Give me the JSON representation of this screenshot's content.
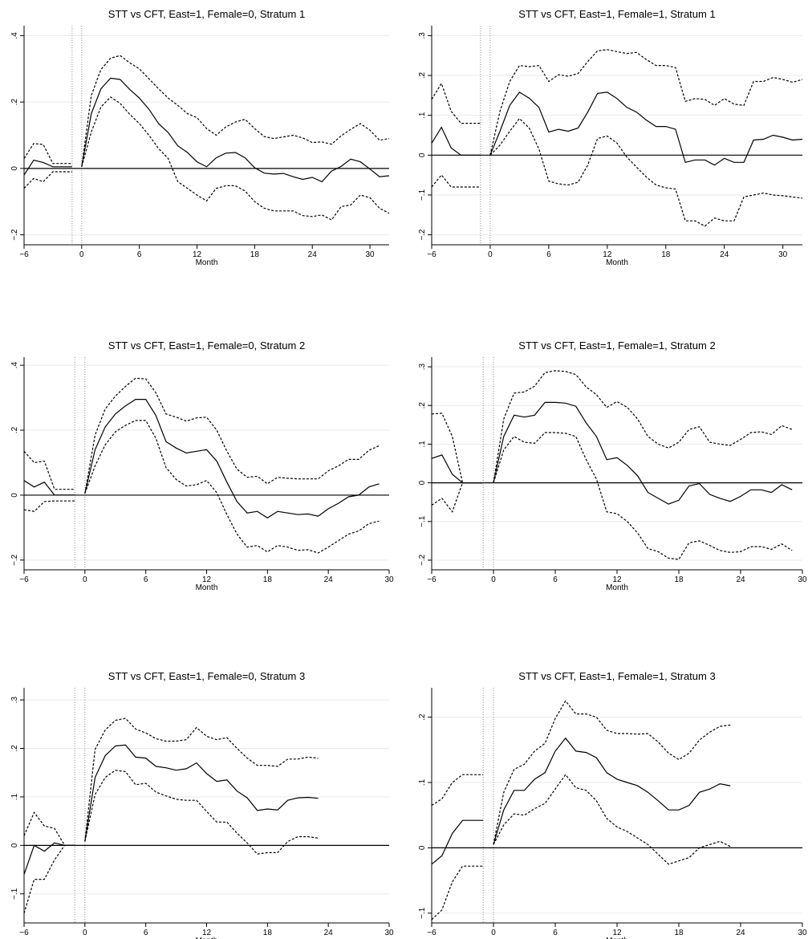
{
  "colors": {
    "line": "#000000",
    "grid": "#eaeaea",
    "ref": "#888888"
  },
  "chart_data": [
    {
      "type": "line",
      "title": "STT vs CFT, East=1, Female=0, Stratum 1",
      "xlabel": "Month",
      "ylabel": "",
      "xlim": [
        -6,
        32
      ],
      "ylim": [
        -0.23,
        0.43
      ],
      "xticks": [
        -6,
        0,
        6,
        12,
        18,
        24,
        30
      ],
      "xtick_labels": [
        "−6",
        "0",
        "6",
        "12",
        "18",
        "24",
        "30"
      ],
      "yticks": [
        -0.2,
        0,
        0.2,
        0.4
      ],
      "ytick_labels": [
        "−.2",
        "0",
        ".2",
        ".4"
      ],
      "grid": true,
      "vlines": [
        -1,
        0
      ],
      "hline": 0,
      "pre": {
        "x": [
          -6,
          -5,
          -4,
          -3,
          -2,
          -1
        ],
        "y": [
          -0.02,
          0.025,
          0.018,
          0.005,
          0.005,
          0.005
        ],
        "lo": [
          -0.06,
          -0.03,
          -0.04,
          -0.01,
          -0.01,
          -0.01
        ],
        "hi": [
          0.03,
          0.075,
          0.072,
          0.015,
          0.015,
          0.015
        ]
      },
      "post": {
        "x": [
          0,
          1,
          2,
          3,
          4,
          5,
          6,
          7,
          8,
          9,
          10,
          11,
          12,
          13,
          14,
          15,
          16,
          17,
          18,
          19,
          20,
          21,
          22,
          23,
          24,
          25,
          26,
          27,
          28,
          29,
          30,
          31,
          32
        ],
        "y": [
          0.005,
          0.165,
          0.24,
          0.272,
          0.268,
          0.238,
          0.212,
          0.178,
          0.135,
          0.108,
          0.068,
          0.048,
          0.02,
          0.005,
          0.032,
          0.046,
          0.048,
          0.032,
          0.002,
          -0.014,
          -0.017,
          -0.015,
          -0.025,
          -0.033,
          -0.027,
          -0.04,
          -0.008,
          0.006,
          0.028,
          0.02,
          -0.002,
          -0.025,
          -0.022
        ],
        "lo": [
          0.005,
          0.11,
          0.185,
          0.215,
          0.196,
          0.163,
          0.135,
          0.1,
          0.06,
          0.03,
          -0.04,
          -0.06,
          -0.08,
          -0.098,
          -0.06,
          -0.052,
          -0.052,
          -0.068,
          -0.1,
          -0.12,
          -0.128,
          -0.128,
          -0.128,
          -0.142,
          -0.145,
          -0.14,
          -0.155,
          -0.115,
          -0.11,
          -0.08,
          -0.088,
          -0.12,
          -0.135
        ],
        "hi": [
          0.005,
          0.22,
          0.298,
          0.332,
          0.34,
          0.318,
          0.3,
          0.27,
          0.24,
          0.212,
          0.19,
          0.165,
          0.153,
          0.12,
          0.1,
          0.125,
          0.14,
          0.148,
          0.12,
          0.096,
          0.09,
          0.095,
          0.1,
          0.092,
          0.078,
          0.08,
          0.073,
          0.098,
          0.118,
          0.135,
          0.115,
          0.085,
          0.09
        ]
      }
    },
    {
      "type": "line",
      "title": "STT vs CFT, East=1, Female=1, Stratum 1",
      "xlabel": "Month",
      "ylabel": "",
      "xlim": [
        -6,
        32
      ],
      "ylim": [
        -0.225,
        0.325
      ],
      "xticks": [
        -6,
        0,
        6,
        12,
        18,
        24,
        30
      ],
      "xtick_labels": [
        "−6",
        "0",
        "6",
        "12",
        "18",
        "24",
        "30"
      ],
      "yticks": [
        -0.2,
        -0.1,
        0,
        0.1,
        0.2,
        0.3
      ],
      "ytick_labels": [
        "−.2",
        "−.1",
        "0",
        ".1",
        ".2",
        ".3"
      ],
      "grid": true,
      "vlines": [
        -1,
        0
      ],
      "hline": 0,
      "pre": {
        "x": [
          -6,
          -5,
          -4,
          -3,
          -2,
          -1
        ],
        "y": [
          0.03,
          0.07,
          0.018,
          0.0,
          0.0,
          0.0
        ],
        "lo": [
          -0.08,
          -0.05,
          -0.08,
          -0.08,
          -0.08,
          -0.08
        ],
        "hi": [
          0.14,
          0.18,
          0.11,
          0.08,
          0.08,
          0.08
        ]
      },
      "post": {
        "x": [
          0,
          1,
          2,
          3,
          4,
          5,
          6,
          7,
          8,
          9,
          10,
          11,
          12,
          13,
          14,
          15,
          16,
          17,
          18,
          19,
          20,
          21,
          22,
          23,
          24,
          25,
          26,
          27,
          28,
          29,
          30,
          31,
          32
        ],
        "y": [
          0.0,
          0.06,
          0.125,
          0.158,
          0.143,
          0.12,
          0.058,
          0.065,
          0.06,
          0.068,
          0.108,
          0.155,
          0.158,
          0.142,
          0.12,
          0.108,
          0.088,
          0.072,
          0.072,
          0.065,
          -0.018,
          -0.012,
          -0.012,
          -0.025,
          -0.008,
          -0.018,
          -0.018,
          0.038,
          0.04,
          0.05,
          0.045,
          0.038,
          0.04
        ],
        "lo": [
          0.0,
          0.025,
          0.06,
          0.092,
          0.068,
          0.015,
          -0.065,
          -0.072,
          -0.075,
          -0.068,
          -0.025,
          0.042,
          0.048,
          0.03,
          -0.005,
          -0.03,
          -0.055,
          -0.075,
          -0.082,
          -0.085,
          -0.165,
          -0.165,
          -0.178,
          -0.158,
          -0.165,
          -0.165,
          -0.105,
          -0.1,
          -0.095,
          -0.1,
          -0.102,
          -0.105,
          -0.108
        ],
        "hi": [
          0.0,
          0.11,
          0.185,
          0.225,
          0.222,
          0.225,
          0.185,
          0.202,
          0.198,
          0.205,
          0.235,
          0.262,
          0.265,
          0.26,
          0.255,
          0.258,
          0.24,
          0.225,
          0.225,
          0.22,
          0.135,
          0.142,
          0.14,
          0.125,
          0.142,
          0.128,
          0.125,
          0.185,
          0.185,
          0.195,
          0.19,
          0.183,
          0.19
        ]
      }
    },
    {
      "type": "line",
      "title": "STT vs CFT, East=1, Female=0, Stratum 2",
      "xlabel": "Month",
      "ylabel": "",
      "xlim": [
        -6,
        30
      ],
      "ylim": [
        -0.23,
        0.425
      ],
      "xticks": [
        -6,
        0,
        6,
        12,
        18,
        24,
        30
      ],
      "xtick_labels": [
        "−6",
        "0",
        "6",
        "12",
        "18",
        "24",
        "30"
      ],
      "yticks": [
        -0.2,
        0,
        0.2,
        0.4
      ],
      "ytick_labels": [
        "−.2",
        "0",
        ".2",
        ".4"
      ],
      "grid": true,
      "vlines": [
        -1,
        0
      ],
      "hline": 0,
      "pre": {
        "x": [
          -6,
          -5,
          -4,
          -3,
          -2,
          -1
        ],
        "y": [
          0.045,
          0.025,
          0.04,
          0.0,
          0.0,
          0.0
        ],
        "lo": [
          -0.045,
          -0.05,
          -0.02,
          -0.018,
          -0.018,
          -0.018
        ],
        "hi": [
          0.135,
          0.1,
          0.105,
          0.018,
          0.018,
          0.018
        ]
      },
      "post": {
        "x": [
          0,
          1,
          2,
          3,
          4,
          5,
          6,
          7,
          8,
          9,
          10,
          11,
          12,
          13,
          14,
          15,
          16,
          17,
          18,
          19,
          20,
          21,
          22,
          23,
          24,
          25,
          26,
          27,
          28,
          29
        ],
        "y": [
          0.005,
          0.14,
          0.21,
          0.25,
          0.275,
          0.295,
          0.295,
          0.245,
          0.165,
          0.145,
          0.13,
          0.135,
          0.14,
          0.105,
          0.04,
          -0.02,
          -0.055,
          -0.05,
          -0.07,
          -0.05,
          -0.055,
          -0.06,
          -0.058,
          -0.065,
          -0.042,
          -0.025,
          -0.005,
          0.0,
          0.025,
          0.035
        ],
        "lo": [
          0.005,
          0.09,
          0.155,
          0.195,
          0.215,
          0.23,
          0.23,
          0.175,
          0.085,
          0.048,
          0.028,
          0.032,
          0.045,
          0.008,
          -0.06,
          -0.12,
          -0.16,
          -0.155,
          -0.175,
          -0.155,
          -0.16,
          -0.17,
          -0.168,
          -0.178,
          -0.16,
          -0.14,
          -0.12,
          -0.11,
          -0.088,
          -0.08
        ],
        "hi": [
          0.005,
          0.185,
          0.265,
          0.305,
          0.335,
          0.36,
          0.358,
          0.315,
          0.25,
          0.24,
          0.228,
          0.238,
          0.24,
          0.2,
          0.135,
          0.08,
          0.055,
          0.058,
          0.035,
          0.055,
          0.052,
          0.05,
          0.05,
          0.05,
          0.075,
          0.09,
          0.11,
          0.11,
          0.138,
          0.152
        ]
      }
    },
    {
      "type": "line",
      "title": "STT vs CFT, East=1, Female=1, Stratum 2",
      "xlabel": "Month",
      "ylabel": "",
      "xlim": [
        -6,
        30
      ],
      "ylim": [
        -0.225,
        0.325
      ],
      "xticks": [
        -6,
        0,
        6,
        12,
        18,
        24,
        30
      ],
      "xtick_labels": [
        "−6",
        "0",
        "6",
        "12",
        "18",
        "24",
        "30"
      ],
      "yticks": [
        -0.2,
        -0.1,
        0,
        0.1,
        0.2,
        0.3
      ],
      "ytick_labels": [
        "−.2",
        "−.1",
        "0",
        ".1",
        ".2",
        ".3"
      ],
      "grid": true,
      "vlines": [
        -1,
        0
      ],
      "hline": 0,
      "pre": {
        "x": [
          -6,
          -5,
          -4,
          -3,
          -2,
          -1
        ],
        "y": [
          0.063,
          0.072,
          0.022,
          0.0,
          0.0,
          0.0
        ],
        "lo": [
          -0.058,
          -0.04,
          -0.075,
          0.0,
          0.0,
          0.0
        ],
        "hi": [
          0.178,
          0.18,
          0.12,
          0.0,
          0.0,
          0.0
        ]
      },
      "post": {
        "x": [
          0,
          1,
          2,
          3,
          4,
          5,
          6,
          7,
          8,
          9,
          10,
          11,
          12,
          13,
          14,
          15,
          16,
          17,
          18,
          19,
          20,
          21,
          22,
          23,
          24,
          25,
          26,
          27,
          28,
          29
        ],
        "y": [
          0.0,
          0.12,
          0.175,
          0.17,
          0.175,
          0.208,
          0.208,
          0.206,
          0.198,
          0.155,
          0.12,
          0.06,
          0.065,
          0.045,
          0.018,
          -0.025,
          -0.04,
          -0.055,
          -0.045,
          -0.008,
          -0.002,
          -0.03,
          -0.04,
          -0.048,
          -0.035,
          -0.018,
          -0.018,
          -0.025,
          -0.005,
          -0.018
        ],
        "lo": [
          0.0,
          0.085,
          0.12,
          0.105,
          0.102,
          0.13,
          0.13,
          0.128,
          0.12,
          0.06,
          0.01,
          -0.075,
          -0.08,
          -0.1,
          -0.13,
          -0.17,
          -0.178,
          -0.195,
          -0.198,
          -0.155,
          -0.15,
          -0.162,
          -0.175,
          -0.18,
          -0.178,
          -0.165,
          -0.165,
          -0.172,
          -0.158,
          -0.175
        ],
        "hi": [
          0.0,
          0.165,
          0.232,
          0.235,
          0.25,
          0.285,
          0.29,
          0.288,
          0.28,
          0.248,
          0.228,
          0.195,
          0.21,
          0.195,
          0.165,
          0.12,
          0.1,
          0.09,
          0.105,
          0.138,
          0.145,
          0.105,
          0.1,
          0.097,
          0.112,
          0.13,
          0.132,
          0.125,
          0.148,
          0.138
        ]
      }
    },
    {
      "type": "line",
      "title": "STT vs CFT, East=1, Female=0, Stratum 3",
      "xlabel": "Month",
      "ylabel": "",
      "xlim": [
        -6,
        30
      ],
      "ylim": [
        -0.16,
        0.325
      ],
      "xticks": [
        -6,
        0,
        6,
        12,
        18,
        24,
        30
      ],
      "xtick_labels": [
        "−6",
        "0",
        "6",
        "12",
        "18",
        "24",
        "30"
      ],
      "yticks": [
        -0.1,
        0,
        0.1,
        0.2,
        0.3
      ],
      "ytick_labels": [
        "−.1",
        "0",
        ".1",
        ".2",
        ".3"
      ],
      "grid": true,
      "vlines": [
        -1,
        0
      ],
      "hline": 0,
      "pre": {
        "x": [
          -6,
          -5,
          -4,
          -3,
          -2,
          -1
        ],
        "y": [
          -0.06,
          0.0,
          -0.012,
          0.005,
          0.0,
          0.0
        ],
        "lo": [
          -0.14,
          -0.07,
          -0.07,
          -0.03,
          0.0,
          0.0
        ],
        "hi": [
          0.02,
          0.068,
          0.04,
          0.035,
          0.0,
          0.0
        ]
      },
      "post": {
        "x": [
          0,
          1,
          2,
          3,
          4,
          5,
          6,
          7,
          8,
          9,
          10,
          11,
          12,
          13,
          14,
          15,
          16,
          17,
          18,
          19,
          20,
          21,
          22,
          23
        ],
        "y": [
          0.008,
          0.14,
          0.185,
          0.205,
          0.207,
          0.182,
          0.18,
          0.163,
          0.16,
          0.155,
          0.158,
          0.17,
          0.148,
          0.132,
          0.135,
          0.112,
          0.098,
          0.072,
          0.075,
          0.073,
          0.093,
          0.098,
          0.099,
          0.097
        ],
        "lo": [
          0.008,
          0.105,
          0.14,
          0.155,
          0.152,
          0.125,
          0.128,
          0.11,
          0.102,
          0.095,
          0.093,
          0.093,
          0.07,
          0.048,
          0.048,
          0.025,
          0.005,
          -0.018,
          -0.015,
          -0.015,
          0.008,
          0.018,
          0.018,
          0.015
        ],
        "hi": [
          0.008,
          0.198,
          0.238,
          0.258,
          0.262,
          0.24,
          0.232,
          0.22,
          0.215,
          0.215,
          0.218,
          0.243,
          0.225,
          0.218,
          0.222,
          0.2,
          0.18,
          0.165,
          0.165,
          0.163,
          0.178,
          0.178,
          0.182,
          0.18
        ]
      }
    },
    {
      "type": "line",
      "title": "STT vs CFT, East=1, Female=1, Stratum 3",
      "xlabel": "Month",
      "ylabel": "",
      "xlim": [
        -6,
        30
      ],
      "ylim": [
        -0.115,
        0.245
      ],
      "xticks": [
        -6,
        0,
        6,
        12,
        18,
        24,
        30
      ],
      "xtick_labels": [
        "−6",
        "0",
        "6",
        "12",
        "18",
        "24",
        "30"
      ],
      "yticks": [
        -0.1,
        0,
        0.1,
        0.2
      ],
      "ytick_labels": [
        "−.1",
        "0",
        ".1",
        ".2"
      ],
      "grid": true,
      "vlines": [
        -1,
        0
      ],
      "hline": 0,
      "pre": {
        "x": [
          -6,
          -5,
          -4,
          -3,
          -2,
          -1
        ],
        "y": [
          -0.025,
          -0.012,
          0.022,
          0.042,
          0.042,
          0.042
        ],
        "lo": [
          -0.11,
          -0.095,
          -0.052,
          -0.028,
          -0.028,
          -0.028
        ],
        "hi": [
          0.065,
          0.075,
          0.1,
          0.112,
          0.112,
          0.112
        ]
      },
      "post": {
        "x": [
          0,
          1,
          2,
          3,
          4,
          5,
          6,
          7,
          8,
          9,
          10,
          11,
          12,
          13,
          14,
          15,
          16,
          17,
          18,
          19,
          20,
          21,
          22,
          23
        ],
        "y": [
          0.005,
          0.058,
          0.088,
          0.088,
          0.105,
          0.115,
          0.148,
          0.168,
          0.148,
          0.146,
          0.138,
          0.115,
          0.105,
          0.1,
          0.095,
          0.085,
          0.072,
          0.058,
          0.058,
          0.065,
          0.085,
          0.09,
          0.098,
          0.095
        ],
        "lo": [
          0.005,
          0.035,
          0.052,
          0.05,
          0.06,
          0.068,
          0.09,
          0.112,
          0.092,
          0.088,
          0.072,
          0.045,
          0.032,
          0.025,
          0.015,
          0.005,
          -0.01,
          -0.025,
          -0.02,
          -0.015,
          0.0,
          0.005,
          0.01,
          0.002
        ],
        "hi": [
          0.005,
          0.085,
          0.12,
          0.128,
          0.148,
          0.16,
          0.198,
          0.225,
          0.205,
          0.205,
          0.2,
          0.18,
          0.175,
          0.175,
          0.174,
          0.175,
          0.162,
          0.145,
          0.135,
          0.145,
          0.165,
          0.177,
          0.186,
          0.188
        ]
      }
    }
  ]
}
